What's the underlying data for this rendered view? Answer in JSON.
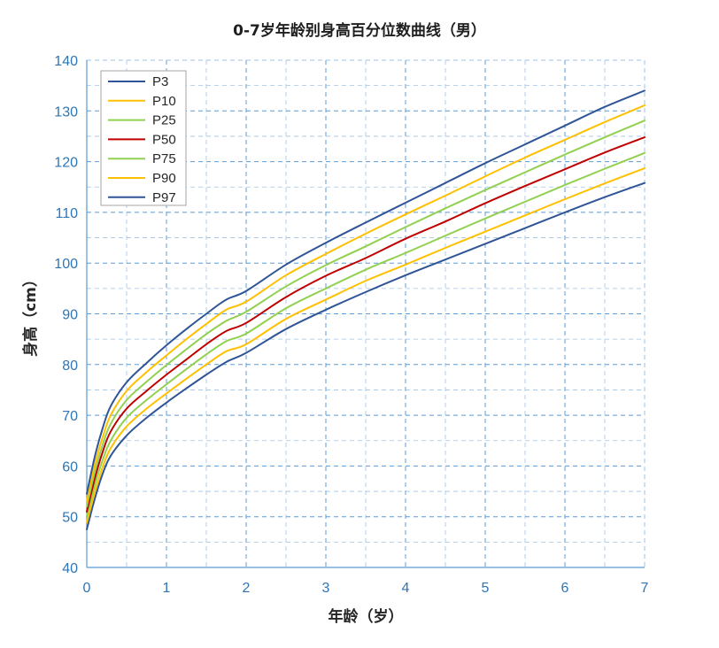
{
  "chart_data": {
    "type": "line",
    "title": "0-7岁年龄别身高百分位数曲线（男）",
    "xlabel": "年龄（岁）",
    "ylabel": "身高（cm）",
    "xlim": [
      0,
      7
    ],
    "ylim": [
      40,
      140
    ],
    "x_ticks": [
      "0",
      "1",
      "2",
      "3",
      "4",
      "5",
      "6",
      "7"
    ],
    "y_ticks": [
      "40",
      "50",
      "60",
      "70",
      "80",
      "90",
      "100",
      "110",
      "120",
      "130",
      "140"
    ],
    "grid": true,
    "legend_position": "top-left",
    "x": [
      0,
      0.1,
      0.2,
      0.3,
      0.5,
      0.75,
      1,
      1.25,
      1.5,
      1.75,
      2,
      2.5,
      3,
      3.5,
      4,
      4.5,
      5,
      5.5,
      6,
      6.5,
      7
    ],
    "series": [
      {
        "name": "P3",
        "color": "#2f5597",
        "values": [
          47.5,
          53.5,
          58.5,
          62.0,
          66.0,
          69.5,
          72.5,
          75.3,
          78.0,
          80.5,
          82.3,
          87.0,
          90.8,
          94.3,
          97.6,
          100.7,
          103.8,
          106.9,
          110.0,
          113.0,
          115.8
        ]
      },
      {
        "name": "P10",
        "color": "#ffc000",
        "values": [
          48.8,
          54.8,
          59.8,
          63.5,
          67.8,
          71.3,
          74.3,
          77.2,
          80.0,
          82.6,
          84.0,
          89.0,
          92.8,
          96.5,
          99.7,
          103.0,
          106.2,
          109.4,
          112.6,
          115.7,
          118.7
        ]
      },
      {
        "name": "P25",
        "color": "#92d050",
        "values": [
          50.0,
          56.2,
          61.2,
          65.0,
          69.5,
          73.0,
          76.1,
          79.1,
          82.0,
          84.6,
          86.1,
          91.1,
          95.0,
          98.7,
          102.0,
          105.4,
          108.8,
          112.1,
          115.4,
          118.6,
          121.7
        ]
      },
      {
        "name": "P50",
        "color": "#c00000",
        "values": [
          51.0,
          57.5,
          62.8,
          66.8,
          71.3,
          74.8,
          78.0,
          81.0,
          84.0,
          86.6,
          88.2,
          93.3,
          97.5,
          101.0,
          104.8,
          108.2,
          111.8,
          115.2,
          118.5,
          121.8,
          124.8
        ]
      },
      {
        "name": "P75",
        "color": "#92d050",
        "values": [
          52.0,
          58.8,
          64.2,
          68.3,
          73.0,
          76.6,
          79.9,
          83.0,
          86.0,
          88.6,
          90.4,
          95.4,
          99.6,
          103.3,
          107.1,
          110.8,
          114.4,
          117.9,
          121.4,
          124.8,
          128.1
        ]
      },
      {
        "name": "P90",
        "color": "#ffc000",
        "values": [
          53.0,
          60.2,
          65.7,
          70.0,
          74.8,
          78.5,
          81.8,
          85.0,
          88.0,
          90.8,
          92.4,
          97.6,
          101.8,
          105.8,
          109.6,
          113.3,
          117.1,
          120.8,
          124.3,
          127.8,
          131.1
        ]
      },
      {
        "name": "P97",
        "color": "#2f5597",
        "values": [
          54.5,
          61.8,
          67.5,
          71.8,
          76.5,
          80.3,
          83.8,
          87.0,
          90.0,
          92.8,
          94.5,
          99.7,
          104.0,
          108.0,
          111.9,
          115.8,
          119.7,
          123.4,
          127.1,
          130.8,
          134.0
        ]
      }
    ]
  }
}
